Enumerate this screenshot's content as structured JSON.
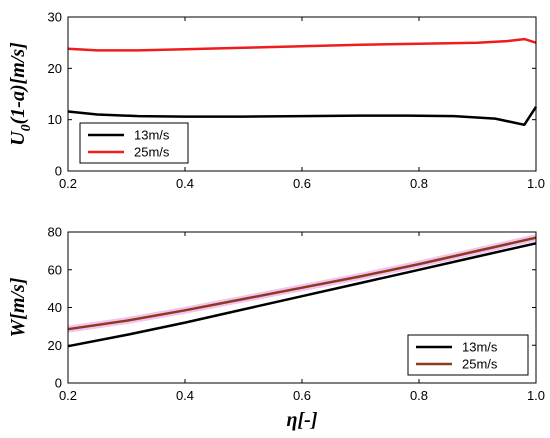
{
  "chart_data": [
    {
      "type": "line",
      "ylabel_main": "U",
      "ylabel_sub": "0",
      "ylabel_rest": "(1-a)[m/s]",
      "xlabel": "",
      "xlim": [
        0.2,
        1.0
      ],
      "ylim": [
        0,
        30
      ],
      "xticks": [
        "0.2",
        "0.4",
        "0.6",
        "0.8",
        "1.0"
      ],
      "yticks": [
        "0",
        "10",
        "20",
        "30"
      ],
      "grid": false,
      "legend": "bottom-left",
      "series": [
        {
          "name": "13m/s",
          "color": "#000000",
          "x": [
            0.2,
            0.25,
            0.32,
            0.4,
            0.5,
            0.6,
            0.7,
            0.78,
            0.86,
            0.93,
            0.98,
            1.0
          ],
          "y": [
            11.6,
            11.0,
            10.7,
            10.6,
            10.6,
            10.7,
            10.8,
            10.8,
            10.7,
            10.2,
            9.0,
            12.5
          ]
        },
        {
          "name": "25m/s",
          "color": "#ee1c1c",
          "x": [
            0.2,
            0.25,
            0.32,
            0.4,
            0.5,
            0.6,
            0.7,
            0.8,
            0.9,
            0.95,
            0.98,
            1.0
          ],
          "y": [
            23.8,
            23.5,
            23.5,
            23.7,
            24.0,
            24.3,
            24.6,
            24.8,
            25.0,
            25.3,
            25.7,
            25.0
          ]
        }
      ]
    },
    {
      "type": "line",
      "ylabel": "W[m/s]",
      "xlabel": "η[-]",
      "xlim": [
        0.2,
        1.0
      ],
      "ylim": [
        0,
        80
      ],
      "xticks": [
        "0.2",
        "0.4",
        "0.6",
        "0.8",
        "1.0"
      ],
      "yticks": [
        "0",
        "20",
        "40",
        "60",
        "80"
      ],
      "grid": false,
      "legend": "bottom-right",
      "series": [
        {
          "name": "13m/s",
          "color": "#000000",
          "x": [
            0.2,
            0.3,
            0.4,
            0.5,
            0.6,
            0.7,
            0.8,
            0.9,
            1.0
          ],
          "y": [
            19.5,
            25.5,
            32.0,
            39.0,
            46.0,
            53.0,
            60.0,
            67.0,
            74.0
          ]
        },
        {
          "name": "25m/s",
          "color": "#8b3a1e",
          "x": [
            0.2,
            0.3,
            0.4,
            0.5,
            0.6,
            0.7,
            0.8,
            0.9,
            1.0
          ],
          "y": [
            28.5,
            33.0,
            38.5,
            44.5,
            50.5,
            56.5,
            63.0,
            70.0,
            77.0
          ]
        }
      ]
    }
  ]
}
